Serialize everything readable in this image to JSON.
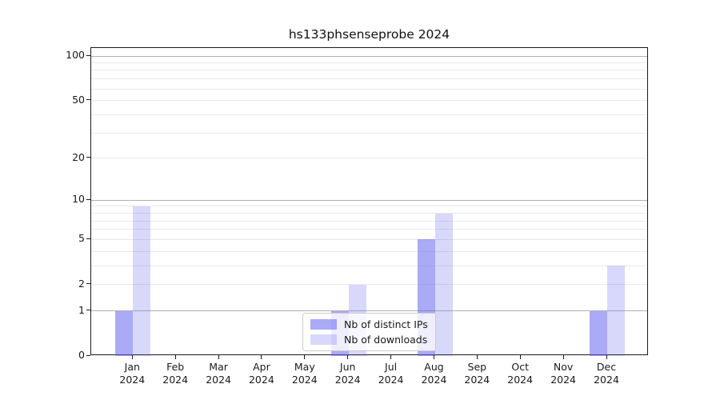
{
  "title": "hs133phsenseprobe 2024",
  "chart_data": {
    "type": "bar",
    "title": "hs133phsenseprobe 2024",
    "categories": [
      "Jan",
      "Feb",
      "Mar",
      "Apr",
      "May",
      "Jun",
      "Jul",
      "Aug",
      "Sep",
      "Oct",
      "Nov",
      "Dec"
    ],
    "category_year": "2024",
    "series": [
      {
        "name": "Nb of distinct IPs",
        "color": "#6464f08c",
        "values": [
          1,
          0,
          0,
          0,
          0,
          1,
          0,
          5,
          0,
          0,
          0,
          1
        ]
      },
      {
        "name": "Nb of downloads",
        "color": "#6464f040",
        "values": [
          9,
          0,
          0,
          0,
          0,
          2,
          0,
          8,
          0,
          0,
          0,
          3
        ]
      }
    ],
    "yscale": "log1p",
    "ylim": [
      0,
      113
    ],
    "yticks": [
      0,
      1,
      2,
      5,
      10,
      20,
      50,
      100
    ],
    "major_gridlines": [
      1,
      10,
      100
    ],
    "minor_gridlines": [
      2,
      3,
      4,
      5,
      6,
      7,
      8,
      9,
      20,
      30,
      40,
      50,
      60,
      70,
      80,
      90
    ],
    "grid": "horizontal",
    "legend_position": "lower center inside"
  },
  "colors": {
    "major_grid": "#b0b0b0",
    "minor_grid": "#e8e8e8",
    "spine": "#1a1a1a",
    "background": "#ffffff"
  }
}
